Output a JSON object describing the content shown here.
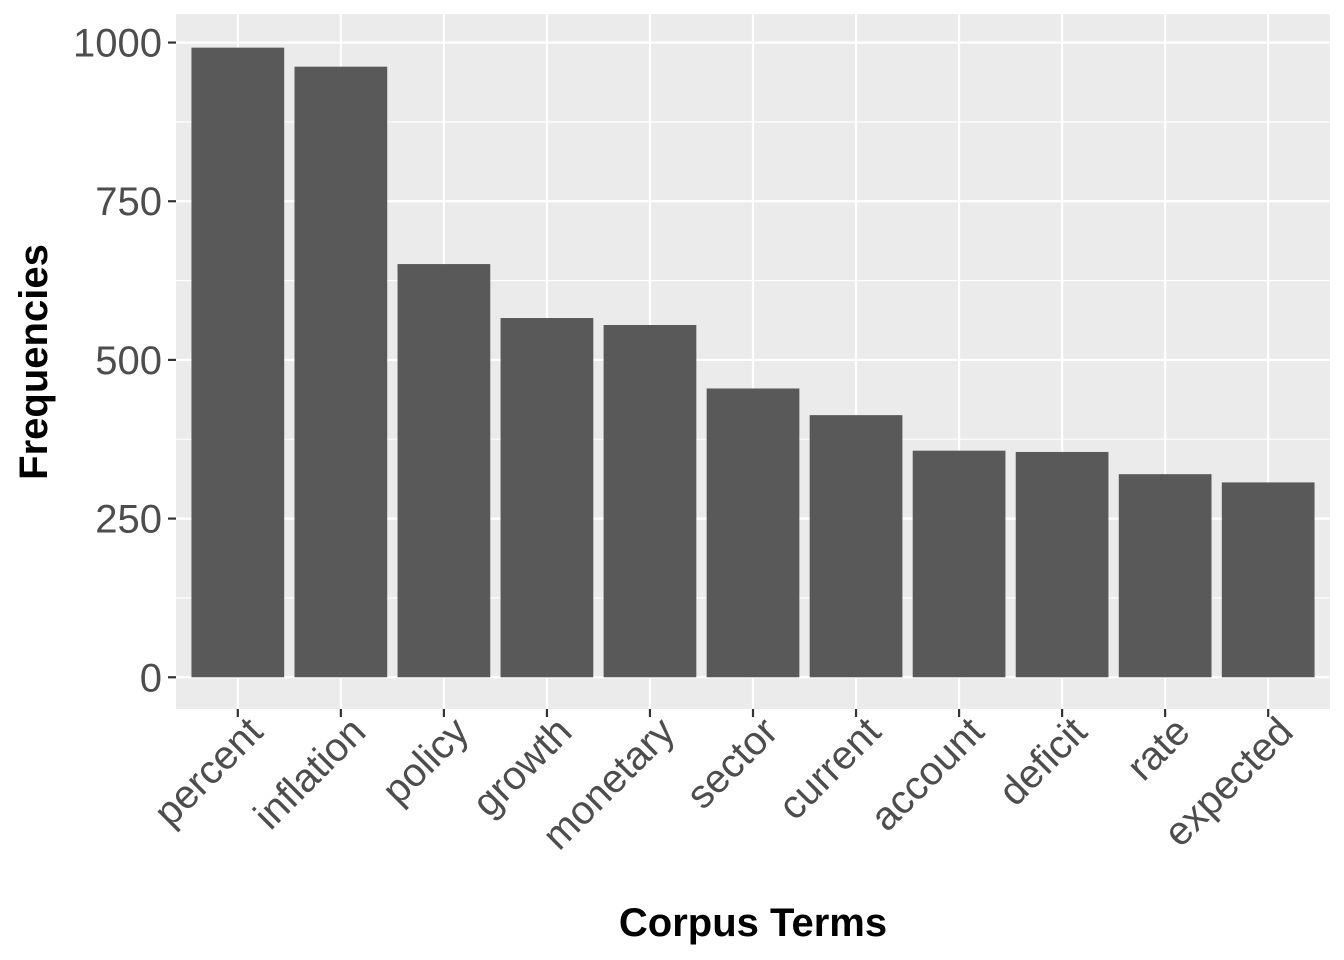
{
  "chart_data": {
    "type": "bar",
    "title": "",
    "xlabel": "Corpus Terms",
    "ylabel": "Frequencies",
    "categories": [
      "percent",
      "inflation",
      "policy",
      "growth",
      "monetary",
      "sector",
      "current",
      "account",
      "deficit",
      "rate",
      "expected"
    ],
    "values": [
      992,
      962,
      651,
      566,
      555,
      455,
      413,
      357,
      355,
      320,
      307
    ],
    "ylim": [
      -50,
      1045
    ],
    "yticks": [
      0,
      250,
      500,
      750,
      1000
    ],
    "ytick_labels": [
      "0",
      "250",
      "500",
      "750",
      "1000"
    ],
    "grid": true,
    "legend": "none",
    "colors": {
      "bar": "#595959",
      "panel": "#ebebeb",
      "grid": "#ffffff"
    }
  }
}
